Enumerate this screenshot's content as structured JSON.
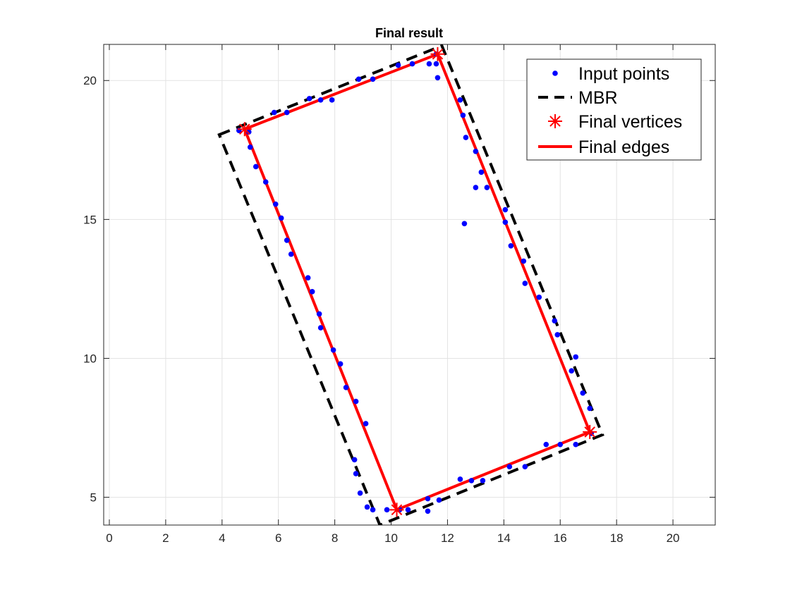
{
  "chart_data": {
    "type": "scatter",
    "title": "Final result",
    "xlabel": "",
    "ylabel": "",
    "xlim": [
      -0.2,
      21.5
    ],
    "ylim": [
      4.0,
      21.3
    ],
    "xticks": [
      0,
      2,
      4,
      6,
      8,
      10,
      12,
      14,
      16,
      18,
      20
    ],
    "yticks": [
      5,
      10,
      15,
      20
    ],
    "grid": true,
    "legend_position": "top-right",
    "legend": [
      "Input points",
      "MBR",
      "Final vertices",
      "Final edges"
    ],
    "series": [
      {
        "name": "Input points",
        "kind": "points",
        "color": "#0000ff",
        "points": [
          [
            4.6,
            18.2
          ],
          [
            4.95,
            18.15
          ],
          [
            5.0,
            17.6
          ],
          [
            5.2,
            16.9
          ],
          [
            5.55,
            16.35
          ],
          [
            5.9,
            15.55
          ],
          [
            6.1,
            15.05
          ],
          [
            6.3,
            14.25
          ],
          [
            6.45,
            13.75
          ],
          [
            7.05,
            12.9
          ],
          [
            7.2,
            12.4
          ],
          [
            7.45,
            11.6
          ],
          [
            7.5,
            11.1
          ],
          [
            7.95,
            10.3
          ],
          [
            8.2,
            9.8
          ],
          [
            8.4,
            8.95
          ],
          [
            8.75,
            8.45
          ],
          [
            9.1,
            7.65
          ],
          [
            8.7,
            6.35
          ],
          [
            8.75,
            5.85
          ],
          [
            8.9,
            5.15
          ],
          [
            9.15,
            4.65
          ],
          [
            9.35,
            4.55
          ],
          [
            9.85,
            4.55
          ],
          [
            10.3,
            4.55
          ],
          [
            10.6,
            4.55
          ],
          [
            11.3,
            4.5
          ],
          [
            11.3,
            4.95
          ],
          [
            11.7,
            4.9
          ],
          [
            12.45,
            5.65
          ],
          [
            12.85,
            5.6
          ],
          [
            13.25,
            5.6
          ],
          [
            14.2,
            6.1
          ],
          [
            14.75,
            6.1
          ],
          [
            15.5,
            6.9
          ],
          [
            16.0,
            6.9
          ],
          [
            16.55,
            6.9
          ],
          [
            17.1,
            7.3
          ],
          [
            17.05,
            8.2
          ],
          [
            16.8,
            8.75
          ],
          [
            16.55,
            10.05
          ],
          [
            16.4,
            9.55
          ],
          [
            15.9,
            10.85
          ],
          [
            15.8,
            11.35
          ],
          [
            15.25,
            12.2
          ],
          [
            14.75,
            12.7
          ],
          [
            14.7,
            13.5
          ],
          [
            14.25,
            14.05
          ],
          [
            14.05,
            15.35
          ],
          [
            14.05,
            14.9
          ],
          [
            13.4,
            16.15
          ],
          [
            13.2,
            16.7
          ],
          [
            13.0,
            16.15
          ],
          [
            13.0,
            17.45
          ],
          [
            12.65,
            17.95
          ],
          [
            12.55,
            18.75
          ],
          [
            12.45,
            19.3
          ],
          [
            12.6,
            14.85
          ],
          [
            11.65,
            20.1
          ],
          [
            11.6,
            20.6
          ],
          [
            11.6,
            20.95
          ],
          [
            11.35,
            20.6
          ],
          [
            10.75,
            20.6
          ],
          [
            10.25,
            20.55
          ],
          [
            9.35,
            20.05
          ],
          [
            8.85,
            20.05
          ],
          [
            7.9,
            19.3
          ],
          [
            7.5,
            19.3
          ],
          [
            7.1,
            19.35
          ],
          [
            6.3,
            18.85
          ],
          [
            5.85,
            18.85
          ]
        ]
      },
      {
        "name": "MBR",
        "kind": "dashed-polygon",
        "color": "#000000",
        "vertices": [
          [
            3.9,
            18.05
          ],
          [
            11.8,
            21.25
          ],
          [
            17.5,
            7.25
          ],
          [
            9.6,
            4.0
          ]
        ]
      },
      {
        "name": "Final vertices",
        "kind": "markers",
        "color": "#ff0000",
        "points": [
          [
            4.8,
            18.25
          ],
          [
            11.65,
            20.95
          ],
          [
            17.05,
            7.35
          ],
          [
            10.2,
            4.55
          ]
        ]
      },
      {
        "name": "Final edges",
        "kind": "polygon",
        "color": "#ff0000",
        "vertices": [
          [
            4.8,
            18.25
          ],
          [
            11.65,
            20.95
          ],
          [
            17.05,
            7.35
          ],
          [
            10.2,
            4.55
          ]
        ]
      }
    ]
  }
}
